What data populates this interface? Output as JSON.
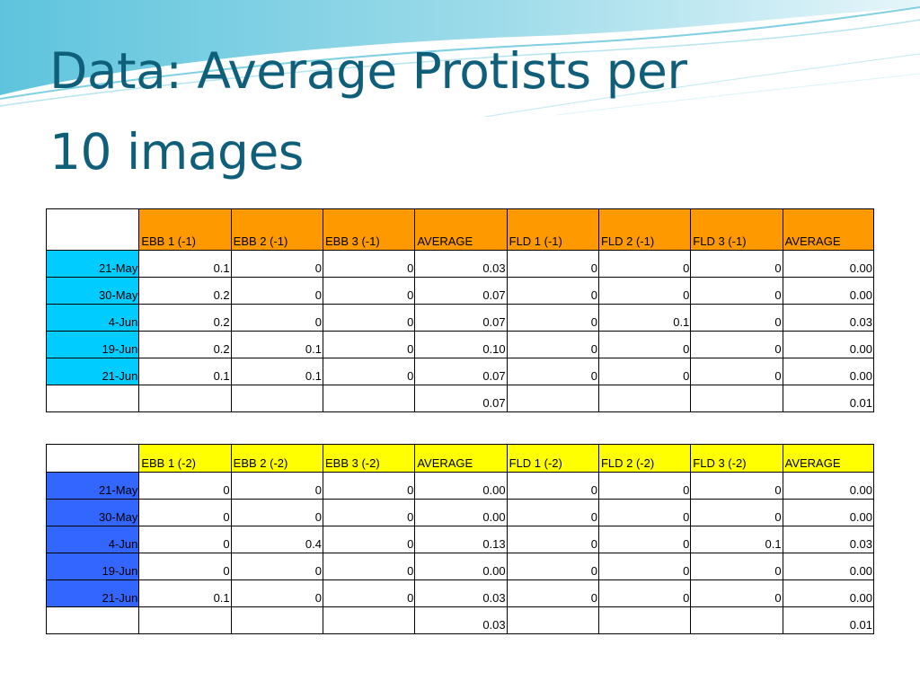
{
  "slide": {
    "title_line1": "Data: Average Protists per",
    "title_line2": "10 images"
  },
  "colors": {
    "title": "#0f5f7a",
    "table1_header": "#ff9900",
    "table1_dates": "#00ccff",
    "table2_header": "#ffff00",
    "table2_dates": "#3366ff"
  },
  "table1": {
    "headers": [
      "EBB 1 (-1)",
      "EBB 2 (-1)",
      "EBB 3 (-1)",
      "AVERAGE",
      "FLD 1 (-1)",
      "FLD 2 (-1)",
      "FLD 3 (-1)",
      "AVERAGE"
    ],
    "rows": [
      {
        "date": "21-May",
        "values": [
          "0.1",
          "0",
          "0",
          "0.03",
          "0",
          "0",
          "0",
          "0.00"
        ]
      },
      {
        "date": "30-May",
        "values": [
          "0.2",
          "0",
          "0",
          "0.07",
          "0",
          "0",
          "0",
          "0.00"
        ]
      },
      {
        "date": "4-Jun",
        "values": [
          "0.2",
          "0",
          "0",
          "0.07",
          "0",
          "0.1",
          "0",
          "0.03"
        ]
      },
      {
        "date": "19-Jun",
        "values": [
          "0.2",
          "0.1",
          "0",
          "0.10",
          "0",
          "0",
          "0",
          "0.00"
        ]
      },
      {
        "date": "21-Jun",
        "values": [
          "0.1",
          "0.1",
          "0",
          "0.07",
          "0",
          "0",
          "0",
          "0.00"
        ]
      }
    ],
    "summary": [
      "",
      "",
      "",
      "0.07",
      "",
      "",
      "",
      "0.01"
    ]
  },
  "table2": {
    "headers": [
      "EBB 1 (-2)",
      "EBB 2 (-2)",
      "EBB 3 (-2)",
      "AVERAGE",
      "FLD 1 (-2)",
      "FLD 2 (-2)",
      "FLD 3 (-2)",
      "AVERAGE"
    ],
    "rows": [
      {
        "date": "21-May",
        "values": [
          "0",
          "0",
          "0",
          "0.00",
          "0",
          "0",
          "0",
          "0.00"
        ]
      },
      {
        "date": "30-May",
        "values": [
          "0",
          "0",
          "0",
          "0.00",
          "0",
          "0",
          "0",
          "0.00"
        ]
      },
      {
        "date": "4-Jun",
        "values": [
          "0",
          "0.4",
          "0",
          "0.13",
          "0",
          "0",
          "0.1",
          "0.03"
        ]
      },
      {
        "date": "19-Jun",
        "values": [
          "0",
          "0",
          "0",
          "0.00",
          "0",
          "0",
          "0",
          "0.00"
        ]
      },
      {
        "date": "21-Jun",
        "values": [
          "0.1",
          "0",
          "0",
          "0.03",
          "0",
          "0",
          "0",
          "0.00"
        ]
      }
    ],
    "summary": [
      "",
      "",
      "",
      "0.03",
      "",
      "",
      "",
      "0.01"
    ]
  }
}
